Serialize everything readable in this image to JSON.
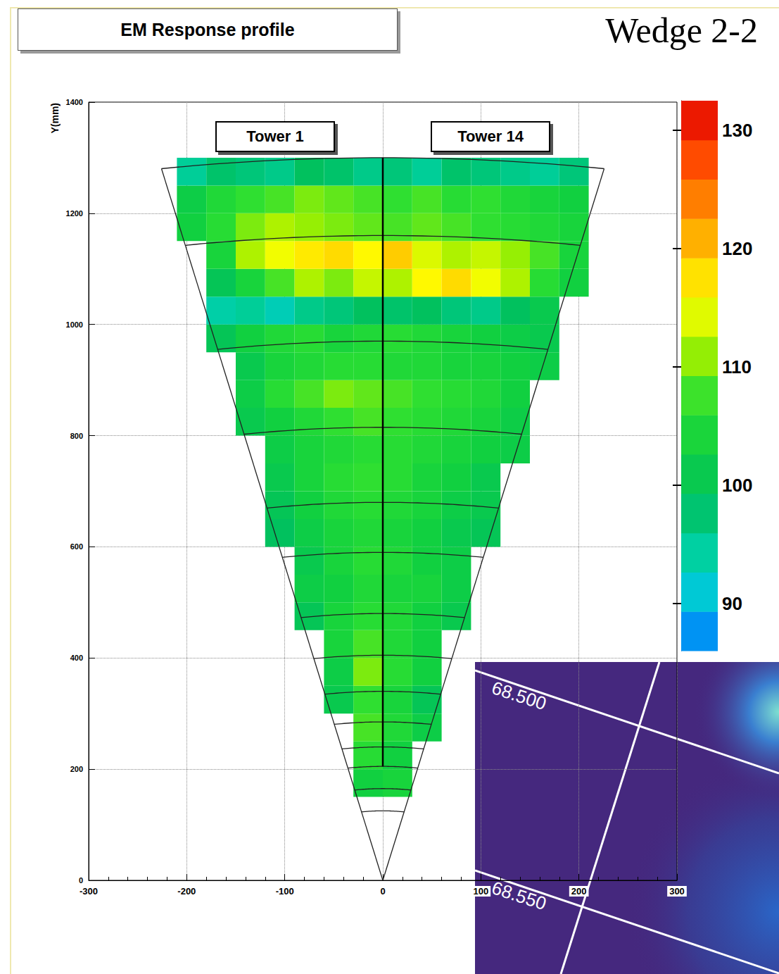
{
  "chart_data": {
    "type": "heatmap",
    "title": "EM Response profile",
    "subtitle": "Wedge 2-2",
    "annotations": [
      "Tower 1",
      "Tower 14"
    ],
    "y_label": "Y(mm)",
    "xlim": [
      -300,
      300
    ],
    "xticks": [
      -300,
      -200,
      -100,
      0,
      100,
      200,
      300
    ],
    "ylim": [
      0,
      1400
    ],
    "yticks": [
      0,
      200,
      400,
      600,
      800,
      1000,
      1200,
      1400
    ],
    "grid": true,
    "cells": {
      "x": [
        -195,
        -165,
        -135,
        -105,
        -75,
        -45,
        -15,
        15,
        45,
        75,
        105,
        135,
        165,
        195
      ],
      "y": [
        175,
        225,
        275,
        325,
        375,
        425,
        475,
        525,
        575,
        625,
        675,
        725,
        775,
        825,
        875,
        925,
        975,
        1025,
        1075,
        1125,
        1175,
        1225,
        1275
      ],
      "values": [
        [
          null,
          null,
          null,
          null,
          null,
          null,
          103,
          104,
          null,
          null,
          null,
          null,
          null,
          null
        ],
        [
          null,
          null,
          null,
          null,
          null,
          null,
          106,
          103,
          null,
          null,
          null,
          null,
          null,
          null
        ],
        [
          null,
          null,
          null,
          null,
          null,
          null,
          108,
          105,
          102,
          null,
          null,
          null,
          null,
          null
        ],
        [
          null,
          null,
          null,
          null,
          null,
          101,
          107,
          104,
          100,
          null,
          null,
          null,
          null,
          null
        ],
        [
          null,
          null,
          null,
          null,
          null,
          102,
          110,
          106,
          103,
          null,
          null,
          null,
          null,
          null
        ],
        [
          null,
          null,
          null,
          null,
          null,
          104,
          108,
          105,
          103,
          null,
          null,
          null,
          null,
          null
        ],
        [
          null,
          null,
          null,
          null,
          100,
          104,
          106,
          105,
          103,
          101,
          null,
          null,
          null,
          null
        ],
        [
          null,
          null,
          null,
          null,
          102,
          103,
          105,
          104,
          104,
          102,
          null,
          null,
          null,
          null
        ],
        [
          null,
          null,
          null,
          null,
          101,
          104,
          106,
          105,
          103,
          102,
          null,
          null,
          null,
          null
        ],
        [
          null,
          null,
          null,
          99,
          102,
          104,
          105,
          104,
          103,
          101,
          100,
          null,
          null,
          null
        ],
        [
          null,
          null,
          null,
          100,
          103,
          105,
          106,
          105,
          104,
          102,
          101,
          null,
          null,
          null
        ],
        [
          null,
          null,
          null,
          101,
          104,
          106,
          107,
          106,
          104,
          103,
          101,
          null,
          null,
          null
        ],
        [
          null,
          null,
          null,
          102,
          104,
          105,
          106,
          106,
          105,
          104,
          103,
          102,
          null,
          null
        ],
        [
          null,
          null,
          101,
          103,
          105,
          107,
          108,
          107,
          106,
          105,
          104,
          102,
          null,
          null
        ],
        [
          null,
          null,
          102,
          106,
          108,
          110,
          109,
          108,
          107,
          106,
          105,
          103,
          null,
          null
        ],
        [
          null,
          null,
          101,
          104,
          105,
          106,
          106,
          105,
          105,
          104,
          104,
          103,
          102,
          null
        ],
        [
          null,
          100,
          103,
          105,
          106,
          104,
          105,
          106,
          105,
          104,
          103,
          102,
          101,
          null
        ],
        [
          null,
          94,
          95,
          93,
          96,
          97,
          99,
          98,
          99,
          97,
          96,
          99,
          101,
          null
        ],
        [
          null,
          100,
          104,
          108,
          112,
          110,
          113,
          112,
          116,
          118,
          115,
          112,
          106,
          103
        ],
        [
          null,
          104,
          112,
          115,
          117,
          118,
          116,
          119,
          114,
          112,
          113,
          111,
          108,
          104
        ],
        [
          103,
          106,
          110,
          112,
          111,
          110,
          109,
          108,
          109,
          108,
          107,
          106,
          105,
          104
        ],
        [
          102,
          105,
          107,
          108,
          110,
          109,
          108,
          107,
          108,
          106,
          107,
          105,
          104,
          103
        ],
        [
          95,
          98,
          97,
          96,
          99,
          98,
          96,
          97,
          95,
          98,
          97,
          96,
          95,
          97
        ]
      ]
    },
    "colorbar": {
      "range": [
        86,
        132.5
      ],
      "ticks": [
        90,
        100,
        110,
        120,
        130
      ]
    },
    "tower_boundaries": {
      "radii": [
        125,
        165,
        205,
        240,
        285,
        340,
        405,
        480,
        590,
        680,
        815,
        970,
        1160,
        1300
      ],
      "half_angle": 10
    }
  },
  "inset": {
    "labels": [
      "68.500",
      "68.550"
    ]
  }
}
